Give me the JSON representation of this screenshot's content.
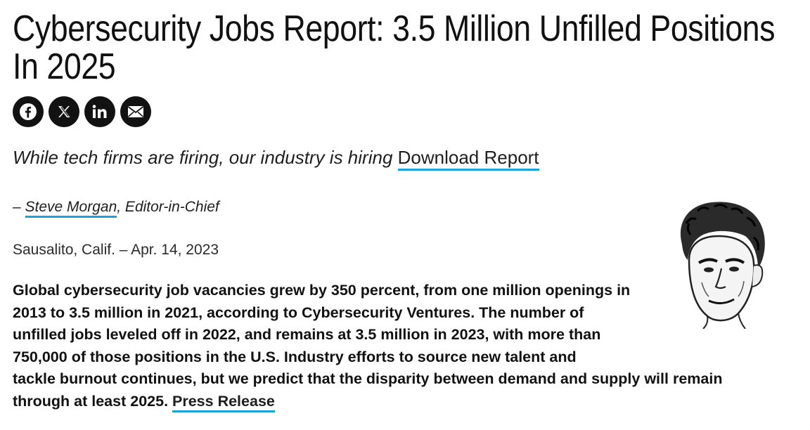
{
  "article": {
    "title": "Cybersecurity Jobs Report: 3.5 Million Unfilled Positions In 2025",
    "tagline": "While tech firms are firing, our industry is hiring",
    "download_link": "Download Report",
    "byline_prefix": "– ",
    "author": "Steve Morgan",
    "author_role": ", Editor-in-Chief",
    "dateline": "Sausalito, Calif. – Apr. 14, 2023",
    "body_part1": "Global cybersecurity job vacancies grew by 350 percent, from one million openings in 2013 to 3.5 million in 2021, according to Cybersecurity Ventures. The number of unfilled jobs leveled off in 2022, and remains at 3.5 million in 2023, with more than 750,000 of those positions in the U.S. Industry efforts to source new talent and",
    "body_part2": "tackle burnout continues, but we predict that the disparity between demand and supply will remain through at least 2025. ",
    "press_release_link": "Press Release"
  },
  "share": {
    "icons": [
      "facebook-icon",
      "x-icon",
      "linkedin-icon",
      "email-icon"
    ]
  },
  "colors": {
    "link_underline": "#1aa3d8",
    "share_bg": "#121212"
  }
}
